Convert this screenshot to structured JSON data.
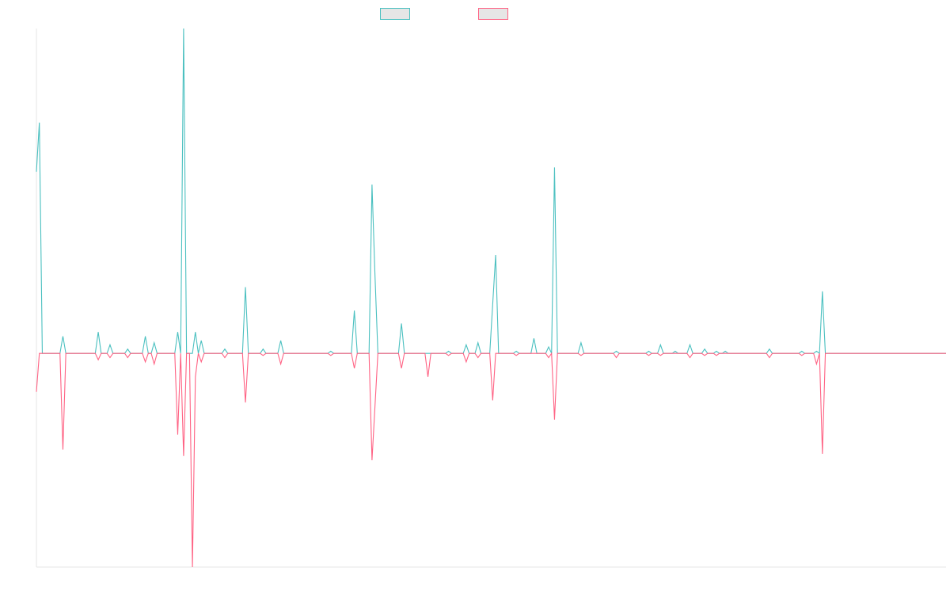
{
  "chart_data": {
    "type": "line",
    "title": "",
    "xlabel": "",
    "ylabel": "",
    "grid": false,
    "legend_position": "top-center",
    "ylim": [
      -100,
      152
    ],
    "x_count": 310,
    "series": [
      {
        "name": "",
        "color": "#4bc0c0",
        "fill": "#e6e6e6",
        "direction": "up",
        "spikes": [
          [
            0,
            85
          ],
          [
            1,
            108
          ],
          [
            9,
            8
          ],
          [
            21,
            10
          ],
          [
            25,
            4
          ],
          [
            31,
            2
          ],
          [
            37,
            8
          ],
          [
            40,
            5
          ],
          [
            48,
            10
          ],
          [
            50,
            152
          ],
          [
            54,
            10
          ],
          [
            56,
            6
          ],
          [
            64,
            2
          ],
          [
            71,
            31
          ],
          [
            77,
            2
          ],
          [
            83,
            6
          ],
          [
            100,
            1
          ],
          [
            108,
            20
          ],
          [
            114,
            79
          ],
          [
            115,
            37
          ],
          [
            124,
            14
          ],
          [
            140,
            1
          ],
          [
            146,
            4
          ],
          [
            150,
            5
          ],
          [
            155,
            23
          ],
          [
            156,
            46
          ],
          [
            163,
            1
          ],
          [
            169,
            7
          ],
          [
            174,
            3
          ],
          [
            176,
            87
          ],
          [
            185,
            5
          ],
          [
            197,
            1
          ],
          [
            208,
            1
          ],
          [
            212,
            4
          ],
          [
            217,
            1
          ],
          [
            222,
            4
          ],
          [
            227,
            2
          ],
          [
            231,
            1
          ],
          [
            234,
            1
          ],
          [
            249,
            2
          ],
          [
            260,
            1
          ],
          [
            265,
            1
          ],
          [
            267,
            29
          ]
        ]
      },
      {
        "name": "",
        "color": "#ff6384",
        "fill": "#e6e6e6",
        "direction": "down",
        "spikes": [
          [
            0,
            18
          ],
          [
            9,
            45
          ],
          [
            21,
            3
          ],
          [
            25,
            2
          ],
          [
            31,
            2
          ],
          [
            37,
            4
          ],
          [
            40,
            5
          ],
          [
            48,
            38
          ],
          [
            50,
            48
          ],
          [
            53,
            100
          ],
          [
            54,
            11
          ],
          [
            56,
            4
          ],
          [
            64,
            2
          ],
          [
            71,
            23
          ],
          [
            77,
            1
          ],
          [
            83,
            5
          ],
          [
            100,
            1
          ],
          [
            108,
            7
          ],
          [
            114,
            50
          ],
          [
            115,
            25
          ],
          [
            124,
            7
          ],
          [
            133,
            11
          ],
          [
            140,
            1
          ],
          [
            146,
            4
          ],
          [
            150,
            2
          ],
          [
            155,
            22
          ],
          [
            163,
            1
          ],
          [
            174,
            2
          ],
          [
            176,
            31
          ],
          [
            185,
            1
          ],
          [
            197,
            2
          ],
          [
            208,
            1
          ],
          [
            212,
            1
          ],
          [
            222,
            2
          ],
          [
            227,
            1
          ],
          [
            231,
            1
          ],
          [
            249,
            2
          ],
          [
            260,
            1
          ],
          [
            265,
            5
          ],
          [
            267,
            47
          ]
        ]
      }
    ]
  }
}
